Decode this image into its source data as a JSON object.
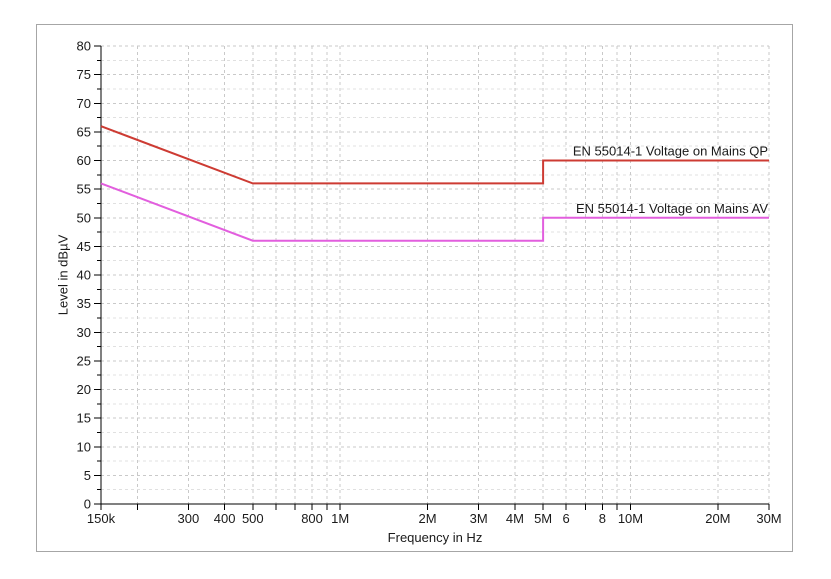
{
  "window": {
    "background": "#ffffff",
    "panel_border": "#a6a6a6",
    "panel_background": "#ffffff"
  },
  "chart_data": {
    "type": "line",
    "title": "",
    "xlabel": "Frequency in Hz",
    "ylabel": "Level in dBµV",
    "x_scale": "log",
    "x_unit": "MHz",
    "xlim": [
      0.15,
      30
    ],
    "ylim": [
      0,
      80
    ],
    "y_major_step": 5,
    "y_minor_step": 2.5,
    "x_ticks": [
      0.15,
      0.2,
      0.3,
      0.4,
      0.5,
      0.6,
      0.7,
      0.8,
      0.9,
      1,
      2,
      3,
      4,
      5,
      6,
      7,
      8,
      9,
      10,
      20,
      30
    ],
    "x_tick_labels": {
      "0.15": "150k",
      "0.3": "300",
      "0.4": "400",
      "0.5": "500",
      "0.8": "800",
      "1": "1M",
      "2": "2M",
      "3": "3M",
      "4": "4M",
      "5": "5M",
      "6": "6",
      "8": "8",
      "10": "10M",
      "20": "20M",
      "30": "30M"
    },
    "grid": {
      "show": true,
      "style": "dashed",
      "major_color": "#c9c9c9",
      "minor_color": "#e0e0e0"
    },
    "axis_color": "#000000",
    "text_color": "#1a1a1a",
    "legend_position": "inline-right-above-line",
    "series": [
      {
        "name": "EN 55014-1 Voltage on Mains QP",
        "color": "#cd3b33",
        "points": [
          [
            0.15,
            66
          ],
          [
            0.5,
            56
          ],
          [
            5,
            56
          ],
          [
            5,
            60
          ],
          [
            30,
            60
          ]
        ]
      },
      {
        "name": "EN 55014-1 Voltage on Mains AV",
        "color": "#e25ede",
        "points": [
          [
            0.15,
            56
          ],
          [
            0.5,
            46
          ],
          [
            5,
            46
          ],
          [
            5,
            50
          ],
          [
            30,
            50
          ]
        ]
      }
    ]
  }
}
